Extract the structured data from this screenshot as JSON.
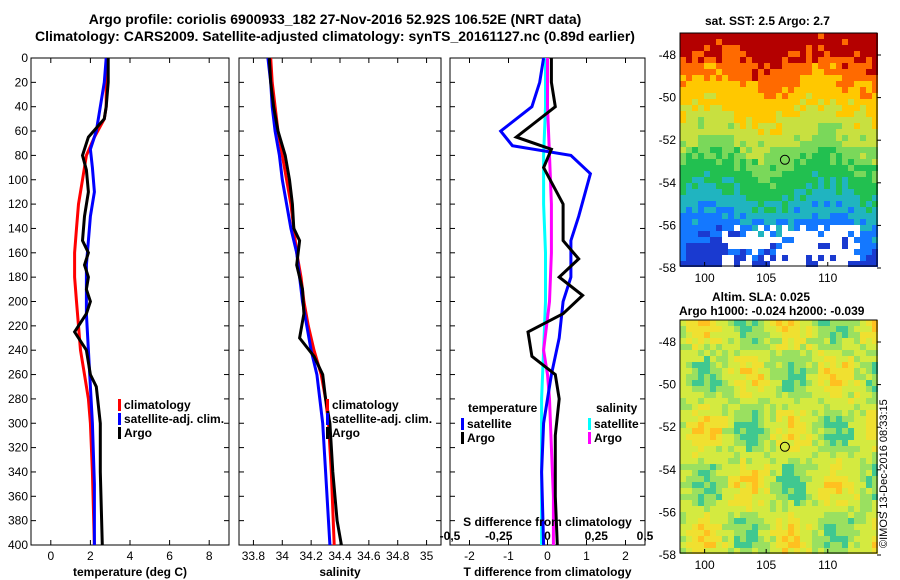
{
  "title_line1": "Argo profile: coriolis 6900933_182 27-Nov-2016 52.92S 106.52E (NRT data)",
  "title_line2": "Climatology: CARS2009. Satellite-adjusted climatology: synTS_20161127.nc (0.89d earlier)",
  "map_sst_title": "sat. SST: 2.5 Argo: 2.7",
  "map_sla_title1": "Altim. SLA: 0.025",
  "map_sla_title2": "Argo h1000: -0.024 h2000: -0.039",
  "watermark": "©IMOS 13-Dec-2016 08:33:15",
  "colors": {
    "climatology": "#ff0000",
    "satellite": "#0000ff",
    "argo": "#000000",
    "s_satellite": "#00ffff",
    "s_climatology": "#ff00ff"
  },
  "chart_data": [
    {
      "type": "line",
      "name": "temperature-panel",
      "xlabel": "temperature (deg C)",
      "ylabel": "",
      "xlim": [
        -1,
        9
      ],
      "ylim": [
        400,
        0
      ],
      "xticks": [
        "0",
        "2",
        "4",
        "6",
        "8"
      ],
      "yticks": [
        "0",
        "20",
        "40",
        "60",
        "80",
        "100",
        "120",
        "140",
        "160",
        "180",
        "200",
        "220",
        "240",
        "260",
        "280",
        "300",
        "320",
        "340",
        "360",
        "380",
        "400"
      ],
      "legend": [
        "climatology",
        "satellite-adj. clim.",
        "Argo"
      ],
      "series": [
        {
          "name": "climatology",
          "points": [
            [
              2.8,
              0
            ],
            [
              2.8,
              20
            ],
            [
              2.8,
              40
            ],
            [
              2.7,
              50
            ],
            [
              2.2,
              65
            ],
            [
              1.8,
              80
            ],
            [
              1.6,
              100
            ],
            [
              1.4,
              120
            ],
            [
              1.3,
              140
            ],
            [
              1.2,
              160
            ],
            [
              1.2,
              180
            ],
            [
              1.3,
              200
            ],
            [
              1.4,
              220
            ],
            [
              1.5,
              240
            ],
            [
              1.7,
              260
            ],
            [
              1.9,
              280
            ],
            [
              2.0,
              300
            ],
            [
              2.1,
              340
            ],
            [
              2.2,
              400
            ]
          ]
        },
        {
          "name": "satellite-adj. clim.",
          "points": [
            [
              2.8,
              0
            ],
            [
              2.7,
              20
            ],
            [
              2.5,
              40
            ],
            [
              2.3,
              60
            ],
            [
              2.0,
              75
            ],
            [
              2.1,
              90
            ],
            [
              2.2,
              110
            ],
            [
              2.0,
              130
            ],
            [
              1.9,
              150
            ],
            [
              1.8,
              170
            ],
            [
              1.8,
              190
            ],
            [
              1.8,
              210
            ],
            [
              1.9,
              240
            ],
            [
              2.0,
              270
            ],
            [
              2.1,
              300
            ],
            [
              2.2,
              350
            ],
            [
              2.2,
              400
            ]
          ]
        },
        {
          "name": "Argo",
          "points": [
            [
              2.9,
              0
            ],
            [
              2.9,
              20
            ],
            [
              2.8,
              40
            ],
            [
              2.7,
              50
            ],
            [
              1.9,
              65
            ],
            [
              1.6,
              80
            ],
            [
              1.8,
              92
            ],
            [
              1.9,
              110
            ],
            [
              1.7,
              130
            ],
            [
              1.6,
              150
            ],
            [
              1.9,
              160
            ],
            [
              1.7,
              170
            ],
            [
              1.9,
              180
            ],
            [
              1.8,
              190
            ],
            [
              2.0,
              200
            ],
            [
              1.8,
              210
            ],
            [
              1.2,
              225
            ],
            [
              1.8,
              240
            ],
            [
              2.0,
              260
            ],
            [
              2.3,
              270
            ],
            [
              2.4,
              285
            ],
            [
              2.5,
              300
            ],
            [
              2.5,
              340
            ],
            [
              2.6,
              400
            ]
          ]
        }
      ]
    },
    {
      "type": "line",
      "name": "salinity-panel",
      "xlabel": "salinity",
      "xlim": [
        33.7,
        35.1
      ],
      "ylim": [
        400,
        0
      ],
      "xticks": [
        "33.8",
        "34",
        "34.2",
        "34.4",
        "34.6",
        "34.8",
        "35"
      ],
      "legend": [
        "climatology",
        "satellite-adj. clim.",
        "Argo"
      ],
      "series": [
        {
          "name": "climatology",
          "points": [
            [
              33.92,
              0
            ],
            [
              33.93,
              20
            ],
            [
              33.95,
              40
            ],
            [
              33.97,
              60
            ],
            [
              34.0,
              80
            ],
            [
              34.03,
              100
            ],
            [
              34.06,
              120
            ],
            [
              34.08,
              140
            ],
            [
              34.1,
              160
            ],
            [
              34.13,
              180
            ],
            [
              34.15,
              200
            ],
            [
              34.18,
              220
            ],
            [
              34.22,
              240
            ],
            [
              34.27,
              260
            ],
            [
              34.3,
              280
            ],
            [
              34.32,
              300
            ],
            [
              34.34,
              340
            ],
            [
              34.36,
              400
            ]
          ]
        },
        {
          "name": "satellite-adj. clim.",
          "points": [
            [
              33.9,
              0
            ],
            [
              33.92,
              20
            ],
            [
              33.93,
              40
            ],
            [
              33.95,
              60
            ],
            [
              33.98,
              80
            ],
            [
              34.0,
              100
            ],
            [
              34.03,
              120
            ],
            [
              34.06,
              140
            ],
            [
              34.1,
              160
            ],
            [
              34.12,
              180
            ],
            [
              34.14,
              200
            ],
            [
              34.17,
              220
            ],
            [
              34.2,
              240
            ],
            [
              34.24,
              260
            ],
            [
              34.26,
              280
            ],
            [
              34.28,
              300
            ],
            [
              34.3,
              340
            ],
            [
              34.33,
              400
            ]
          ]
        },
        {
          "name": "Argo",
          "points": [
            [
              33.91,
              0
            ],
            [
              33.92,
              20
            ],
            [
              33.94,
              40
            ],
            [
              33.97,
              60
            ],
            [
              34.02,
              80
            ],
            [
              34.05,
              100
            ],
            [
              34.07,
              120
            ],
            [
              34.08,
              140
            ],
            [
              34.12,
              150
            ],
            [
              34.1,
              170
            ],
            [
              34.14,
              190
            ],
            [
              34.15,
              210
            ],
            [
              34.12,
              230
            ],
            [
              34.22,
              245
            ],
            [
              34.28,
              260
            ],
            [
              34.3,
              280
            ],
            [
              34.33,
              300
            ],
            [
              34.35,
              340
            ],
            [
              34.38,
              380
            ],
            [
              34.41,
              400
            ]
          ]
        }
      ]
    },
    {
      "type": "line",
      "name": "difference-panel",
      "xlabel": "T difference from climatology",
      "x2label": "S difference from climatology",
      "xlim": [
        -2.5,
        2.5
      ],
      "ylim": [
        400,
        0
      ],
      "xticks": [
        "-2",
        "-1",
        "0",
        "1",
        "2"
      ],
      "x2ticks": [
        "-0.5",
        "-0.25",
        "0",
        "0.25",
        "0.5"
      ],
      "legend_t_title": "temperature",
      "legend_s_title": "salinity",
      "legend_t": [
        "satellite",
        "Argo"
      ],
      "legend_s": [
        "satellite",
        "Argo"
      ],
      "series": [
        {
          "name": "T satellite",
          "points": [
            [
              -0.1,
              0
            ],
            [
              -0.2,
              20
            ],
            [
              -0.4,
              40
            ],
            [
              -1.2,
              60
            ],
            [
              -0.9,
              72
            ],
            [
              0.6,
              80
            ],
            [
              1.1,
              95
            ],
            [
              0.8,
              130
            ],
            [
              0.6,
              150
            ],
            [
              0.6,
              180
            ],
            [
              0.4,
              200
            ],
            [
              0.3,
              230
            ],
            [
              0.1,
              260
            ],
            [
              -0.1,
              300
            ],
            [
              -0.15,
              340
            ],
            [
              -0.1,
              400
            ]
          ]
        },
        {
          "name": "T Argo",
          "points": [
            [
              0.1,
              0
            ],
            [
              0.1,
              20
            ],
            [
              0.2,
              40
            ],
            [
              -0.4,
              55
            ],
            [
              -0.8,
              65
            ],
            [
              0.1,
              75
            ],
            [
              -0.1,
              90
            ],
            [
              0.4,
              120
            ],
            [
              0.4,
              150
            ],
            [
              0.8,
              165
            ],
            [
              0.3,
              180
            ],
            [
              0.9,
              195
            ],
            [
              0.4,
              210
            ],
            [
              -0.5,
              225
            ],
            [
              -0.4,
              245
            ],
            [
              0.2,
              260
            ],
            [
              0.3,
              280
            ],
            [
              0.2,
              310
            ],
            [
              0.2,
              360
            ],
            [
              0.25,
              400
            ]
          ]
        },
        {
          "name": "S satellite",
          "points": [
            [
              -0.01,
              0
            ],
            [
              -0.01,
              40
            ],
            [
              -0.02,
              80
            ],
            [
              -0.02,
              120
            ],
            [
              -0.01,
              160
            ],
            [
              -0.01,
              200
            ],
            [
              -0.02,
              240
            ],
            [
              -0.03,
              280
            ],
            [
              -0.03,
              320
            ],
            [
              -0.03,
              360
            ],
            [
              -0.03,
              400
            ]
          ]
        },
        {
          "name": "S Argo",
          "points": [
            [
              0.0,
              0
            ],
            [
              0.0,
              40
            ],
            [
              0.01,
              80
            ],
            [
              0.02,
              120
            ],
            [
              0.02,
              160
            ],
            [
              0.01,
              200
            ],
            [
              -0.02,
              240
            ],
            [
              0.0,
              260
            ],
            [
              0.01,
              280
            ],
            [
              0.02,
              320
            ],
            [
              0.03,
              360
            ],
            [
              0.03,
              400
            ]
          ]
        }
      ]
    },
    {
      "type": "heatmap",
      "name": "sst-map",
      "xticks": [
        "100",
        "105",
        "110"
      ],
      "yticks": [
        "-48",
        "-50",
        "-52",
        "-54",
        "-56",
        "-58"
      ]
    },
    {
      "type": "heatmap",
      "name": "sla-map",
      "xticks": [
        "100",
        "105",
        "110"
      ],
      "yticks": [
        "-48",
        "-50",
        "-52",
        "-54",
        "-56",
        "-58"
      ]
    }
  ]
}
